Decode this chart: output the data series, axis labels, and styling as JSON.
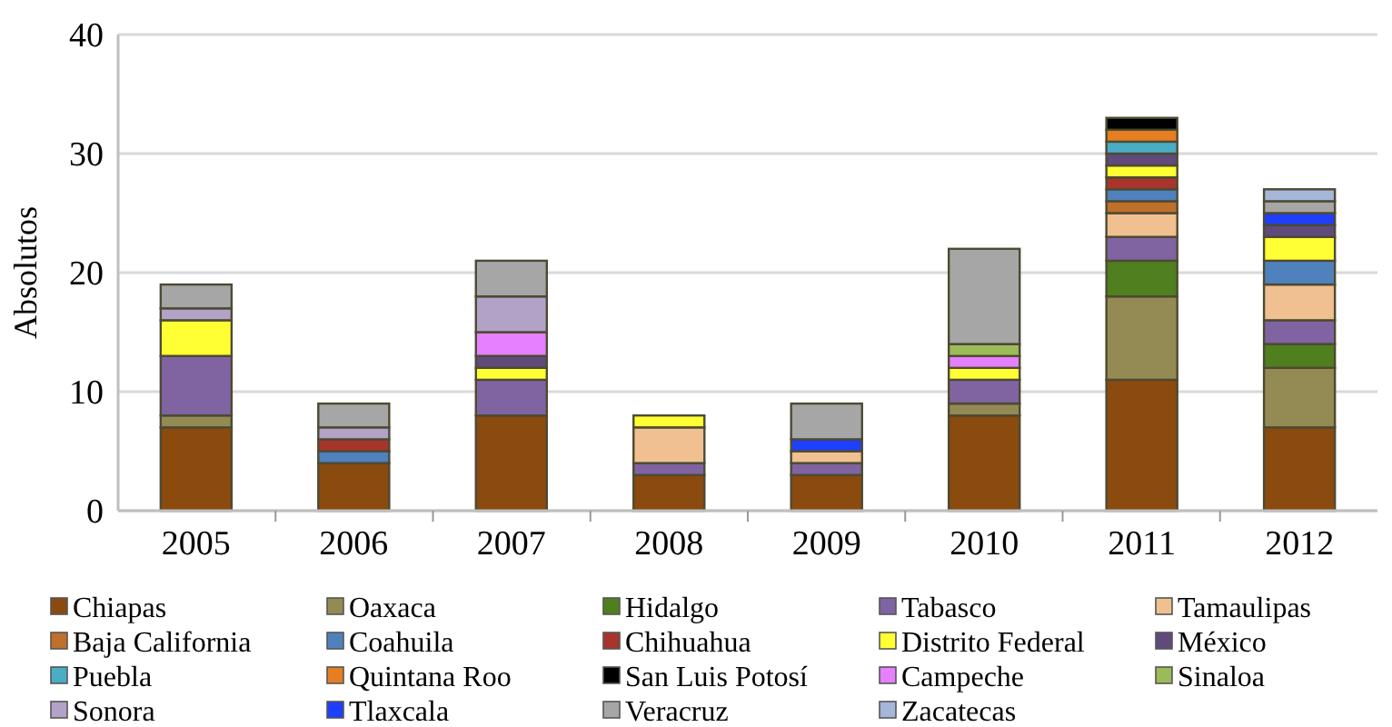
{
  "chart_data": {
    "type": "bar",
    "stacked": true,
    "ylabel": "Absolutos",
    "categories": [
      "2005",
      "2006",
      "2007",
      "2008",
      "2009",
      "2010",
      "2011",
      "2012"
    ],
    "ylim": [
      0,
      40
    ],
    "yticks": [
      0,
      10,
      20,
      30,
      40
    ],
    "grid": "y",
    "legend": "bottom",
    "series": [
      {
        "name": "Chiapas",
        "color": "#8b4a0e",
        "values": [
          7,
          4,
          8,
          3,
          3,
          8,
          11,
          7
        ]
      },
      {
        "name": "Oaxaca",
        "color": "#948a54",
        "values": [
          1,
          0,
          0,
          0,
          0,
          1,
          7,
          5
        ]
      },
      {
        "name": "Hidalgo",
        "color": "#4f7f1f",
        "values": [
          0,
          0,
          0,
          0,
          0,
          0,
          3,
          2
        ]
      },
      {
        "name": "Tabasco",
        "color": "#8064a2",
        "values": [
          5,
          0,
          3,
          1,
          1,
          2,
          2,
          2
        ]
      },
      {
        "name": "Tamaulipas",
        "color": "#f0c090",
        "values": [
          0,
          0,
          0,
          3,
          1,
          0,
          2,
          3
        ]
      },
      {
        "name": "Baja California",
        "color": "#c0702a",
        "values": [
          0,
          0,
          0,
          0,
          0,
          0,
          1,
          0
        ]
      },
      {
        "name": "Coahuila",
        "color": "#4f81bd",
        "values": [
          0,
          1,
          0,
          0,
          0,
          0,
          1,
          2
        ]
      },
      {
        "name": "Chihuahua",
        "color": "#a9342c",
        "values": [
          0,
          1,
          0,
          0,
          0,
          0,
          1,
          0
        ]
      },
      {
        "name": "Distrito Federal",
        "color": "#ffff33",
        "values": [
          3,
          0,
          1,
          1,
          0,
          1,
          1,
          2
        ]
      },
      {
        "name": "México",
        "color": "#604a7b",
        "values": [
          0,
          0,
          1,
          0,
          0,
          0,
          1,
          1
        ]
      },
      {
        "name": "Puebla",
        "color": "#4bacc6",
        "values": [
          0,
          0,
          0,
          0,
          0,
          0,
          1,
          0
        ]
      },
      {
        "name": "Quintana Roo",
        "color": "#e67e22",
        "values": [
          0,
          0,
          0,
          0,
          0,
          0,
          1,
          0
        ]
      },
      {
        "name": "San Luis Potosí",
        "color": "#000000",
        "values": [
          0,
          0,
          0,
          0,
          0,
          0,
          1,
          0
        ]
      },
      {
        "name": "Campeche",
        "color": "#e580ff",
        "values": [
          0,
          0,
          2,
          0,
          0,
          1,
          0,
          0
        ]
      },
      {
        "name": "Sinaloa",
        "color": "#9bbb59",
        "values": [
          0,
          0,
          0,
          0,
          0,
          1,
          0,
          0
        ]
      },
      {
        "name": "Sonora",
        "color": "#b3a2c7",
        "values": [
          1,
          1,
          3,
          0,
          0,
          0,
          0,
          0
        ]
      },
      {
        "name": "Tlaxcala",
        "color": "#1f3fff",
        "values": [
          0,
          0,
          0,
          0,
          1,
          0,
          0,
          1
        ]
      },
      {
        "name": "Veracruz",
        "color": "#a6a6a6",
        "values": [
          2,
          2,
          3,
          0,
          3,
          8,
          0,
          1
        ]
      },
      {
        "name": "Zacatecas",
        "color": "#a5b6d9",
        "values": [
          0,
          0,
          0,
          0,
          0,
          0,
          0,
          1
        ]
      }
    ]
  }
}
